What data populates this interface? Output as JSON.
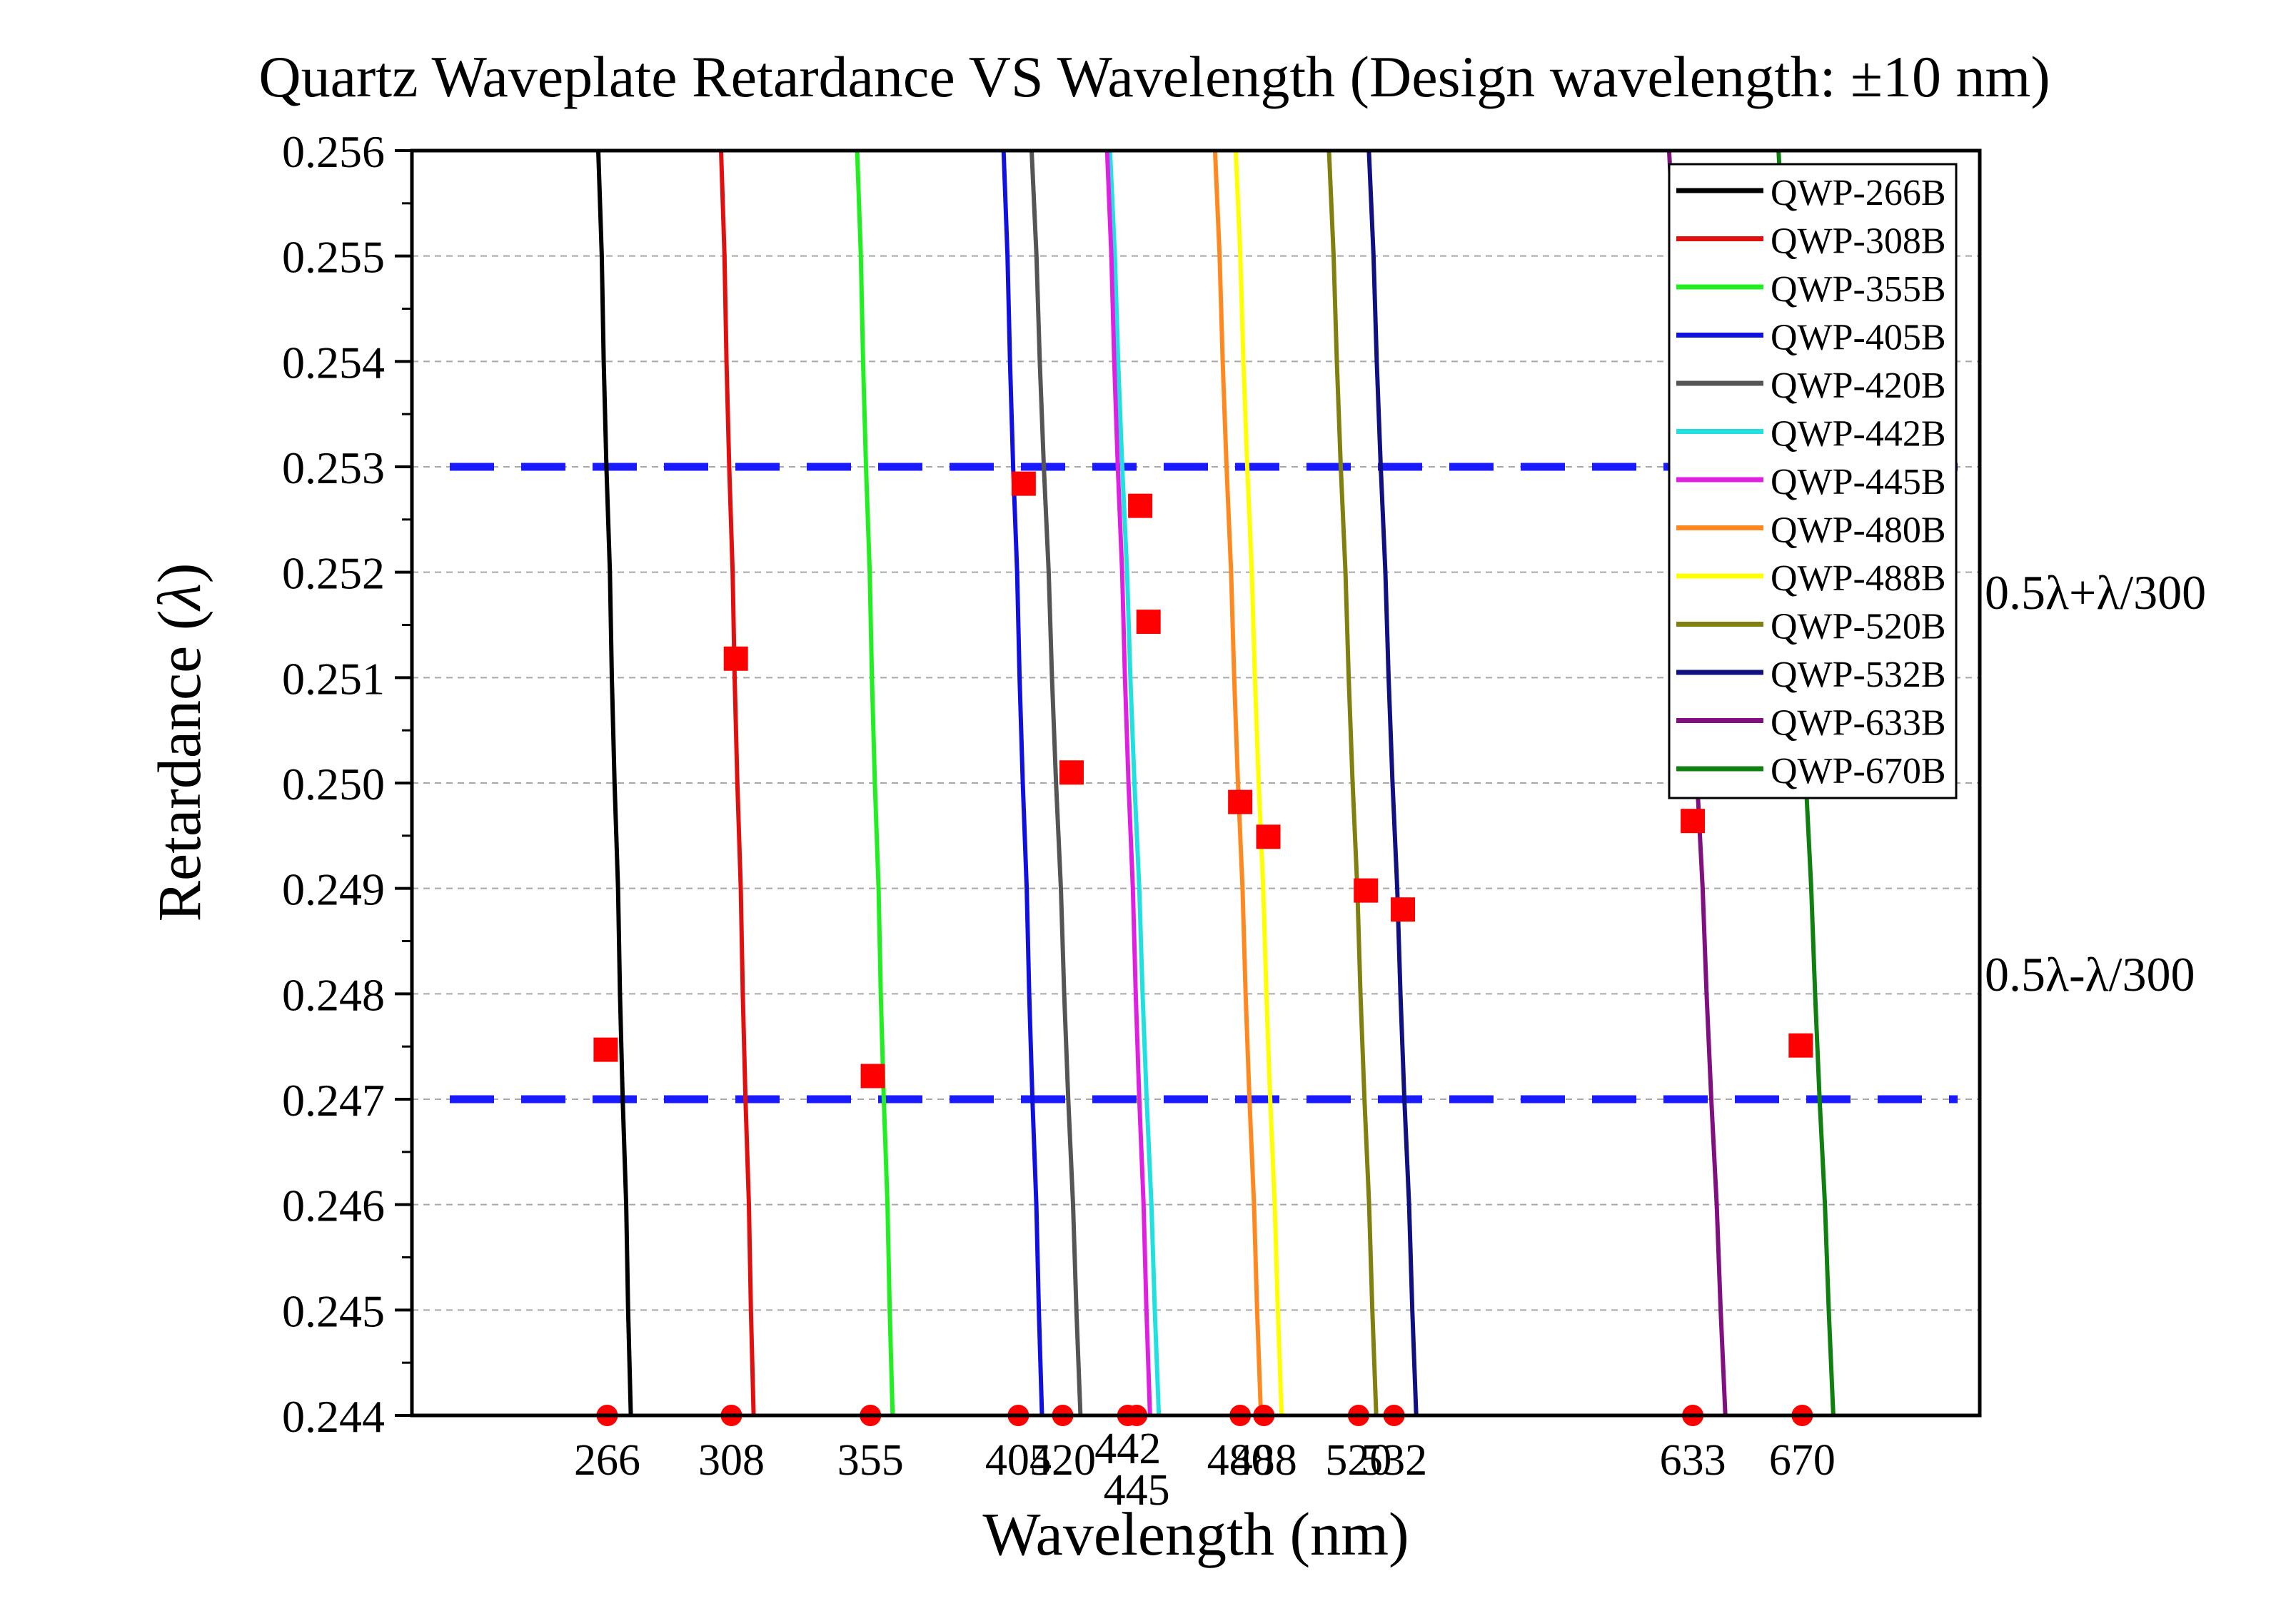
{
  "chart_data": {
    "type": "line",
    "title": "Quartz Waveplate Retardance VS Wavelength (Design wavelength: ±10 nm)",
    "xlabel": "Wavelength (nm)",
    "ylabel_main": "Retardance (",
    "ylabel_italic": "λ",
    "ylabel_close": ")",
    "xlim": [
      200,
      730
    ],
    "ylim": [
      0.244,
      0.256
    ],
    "y_ticks": [
      "0.244",
      "0.245",
      "0.246",
      "0.247",
      "0.248",
      "0.249",
      "0.250",
      "0.251",
      "0.252",
      "0.253",
      "0.254",
      "0.255",
      "0.256"
    ],
    "x_ticks": [
      {
        "v": 266,
        "label": "266",
        "row": 0
      },
      {
        "v": 308,
        "label": "308",
        "row": 0
      },
      {
        "v": 355,
        "label": "355",
        "row": 0
      },
      {
        "v": 405,
        "label": "405",
        "row": 0
      },
      {
        "v": 420,
        "label": "420",
        "row": 0
      },
      {
        "v": 442,
        "label": "442",
        "row": -1
      },
      {
        "v": 445,
        "label": "445",
        "row": 1
      },
      {
        "v": 480,
        "label": "480",
        "row": 0
      },
      {
        "v": 488,
        "label": "488",
        "row": 0
      },
      {
        "v": 520,
        "label": "520",
        "row": 0
      },
      {
        "v": 532,
        "label": "532",
        "row": 0
      },
      {
        "v": 633,
        "label": "633",
        "row": 0
      },
      {
        "v": 670,
        "label": "670",
        "row": 0
      }
    ],
    "grid": "horizontal dashed",
    "legend_position": "top-right",
    "reference_lines": [
      {
        "y": 0.253,
        "label": "0.5λ+λ/300",
        "color": "#1a1aff"
      },
      {
        "y": 0.247,
        "label": "0.5λ-λ/300",
        "color": "#1a1aff"
      }
    ],
    "series": [
      {
        "name": "QWP-266B",
        "color": "#000000",
        "top_wl": 263.0,
        "bottom_wl": 274.0
      },
      {
        "name": "QWP-308B",
        "color": "#e01010",
        "top_wl": 304.5,
        "bottom_wl": 315.5
      },
      {
        "name": "QWP-355B",
        "color": "#22ee22",
        "top_wl": 350.5,
        "bottom_wl": 362.5
      },
      {
        "name": "QWP-405B",
        "color": "#1010e0",
        "top_wl": 400.0,
        "bottom_wl": 413.0
      },
      {
        "name": "QWP-420B",
        "color": "#555555",
        "top_wl": 409.5,
        "bottom_wl": 426.0
      },
      {
        "name": "QWP-442B",
        "color": "#22e0e0",
        "top_wl": 436.0,
        "bottom_wl": 452.5
      },
      {
        "name": "QWP-445B",
        "color": "#e020e0",
        "top_wl": 435.0,
        "bottom_wl": 449.5
      },
      {
        "name": "QWP-480B",
        "color": "#ff8820",
        "top_wl": 471.5,
        "bottom_wl": 487.0
      },
      {
        "name": "QWP-488B",
        "color": "#ffff00",
        "top_wl": 478.5,
        "bottom_wl": 494.0
      },
      {
        "name": "QWP-520B",
        "color": "#808010",
        "top_wl": 510.0,
        "bottom_wl": 526.0
      },
      {
        "name": "QWP-532B",
        "color": "#101080",
        "top_wl": 523.5,
        "bottom_wl": 539.5
      },
      {
        "name": "QWP-633B",
        "color": "#801080",
        "top_wl": 625.0,
        "bottom_wl": 644.0
      },
      {
        "name": "QWP-670B",
        "color": "#108010",
        "top_wl": 662.0,
        "bottom_wl": 680.5
      }
    ],
    "square_markers": [
      {
        "x": 265.5,
        "y": 0.24747
      },
      {
        "x": 309.5,
        "y": 0.25118
      },
      {
        "x": 355.8,
        "y": 0.24722
      },
      {
        "x": 406.8,
        "y": 0.25284
      },
      {
        "x": 423.0,
        "y": 0.2501
      },
      {
        "x": 446.2,
        "y": 0.25263
      },
      {
        "x": 449.0,
        "y": 0.25153
      },
      {
        "x": 480.0,
        "y": 0.24982
      },
      {
        "x": 489.5,
        "y": 0.24949
      },
      {
        "x": 522.5,
        "y": 0.24898
      },
      {
        "x": 535.0,
        "y": 0.2488
      },
      {
        "x": 633.0,
        "y": 0.24964
      },
      {
        "x": 669.5,
        "y": 0.24751
      }
    ],
    "axis_dots": [
      266,
      308,
      355,
      405,
      420,
      442,
      445,
      480,
      488,
      520,
      532,
      633,
      670
    ]
  }
}
